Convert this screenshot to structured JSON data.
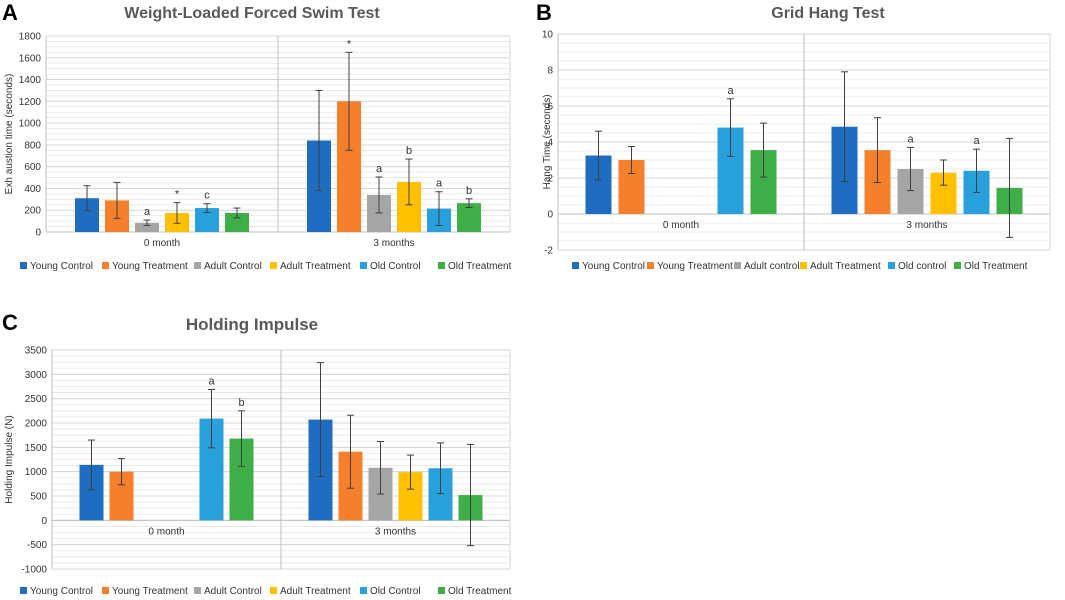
{
  "panels": [
    {
      "letter": "A"
    },
    {
      "letter": "B"
    },
    {
      "letter": "C"
    }
  ],
  "colors": {
    "young_control": "#1f6dc1",
    "young_treatment": "#f57f2a",
    "adult_control": "#a5a5a5",
    "adult_treatment": "#ffc000",
    "old_control": "#28a0dc",
    "old_treatment": "#3fae49"
  },
  "chart_data": [
    {
      "type": "bar",
      "title": "Weight-Loaded Forced Swim Test",
      "xlabel": "",
      "ylabel": "Exh austion time (seconds)",
      "ylim": [
        0,
        1800
      ],
      "yticks": [
        0,
        200,
        400,
        600,
        800,
        1000,
        1200,
        1400,
        1600,
        1800
      ],
      "categories": [
        "0 month",
        "3 months"
      ],
      "series": [
        {
          "name": "Young Control",
          "values": [
            310,
            840
          ],
          "errors": [
            115,
            460
          ],
          "labels": [
            "",
            ""
          ]
        },
        {
          "name": "Young Treatment",
          "values": [
            290,
            1200
          ],
          "errors": [
            165,
            450
          ],
          "labels": [
            "",
            "*"
          ]
        },
        {
          "name": "Adult Control",
          "values": [
            85,
            340
          ],
          "errors": [
            25,
            165
          ],
          "labels": [
            "a",
            "a"
          ]
        },
        {
          "name": "Adult Treatment",
          "values": [
            175,
            460
          ],
          "errors": [
            95,
            210
          ],
          "labels": [
            "*",
            "b"
          ]
        },
        {
          "name": "Old Control",
          "values": [
            220,
            215
          ],
          "errors": [
            40,
            155
          ],
          "labels": [
            "c",
            "a"
          ]
        },
        {
          "name": "Old Treatment",
          "values": [
            175,
            265
          ],
          "errors": [
            45,
            40
          ],
          "labels": [
            "",
            "b"
          ]
        }
      ]
    },
    {
      "type": "bar",
      "title": "Grid Hang Test",
      "xlabel": "",
      "ylabel": "Hang Time (seconds)",
      "ylim": [
        -2,
        10
      ],
      "yticks": [
        -2,
        0,
        2,
        4,
        6,
        8,
        10
      ],
      "categories": [
        "0 month",
        "3 months"
      ],
      "series": [
        {
          "name": "Young Control",
          "values": [
            3.25,
            4.85
          ],
          "errors": [
            1.35,
            3.05
          ],
          "labels": [
            "",
            ""
          ],
          "present": [
            true,
            true
          ]
        },
        {
          "name": "Young Treatment",
          "values": [
            3.0,
            3.55
          ],
          "errors": [
            0.75,
            1.8
          ],
          "labels": [
            "",
            ""
          ],
          "present": [
            true,
            true
          ]
        },
        {
          "name": "Adult control",
          "values": [
            0,
            2.5
          ],
          "errors": [
            0,
            1.2
          ],
          "labels": [
            "",
            "a"
          ],
          "present": [
            false,
            true
          ]
        },
        {
          "name": "Adult Treatment",
          "values": [
            0,
            2.3
          ],
          "errors": [
            0,
            0.7
          ],
          "labels": [
            "",
            ""
          ],
          "present": [
            false,
            true
          ]
        },
        {
          "name": "Old control",
          "values": [
            4.8,
            2.4
          ],
          "errors": [
            1.6,
            1.2
          ],
          "labels": [
            "a",
            "a"
          ],
          "present": [
            true,
            true
          ]
        },
        {
          "name": "Old Treatment",
          "values": [
            3.55,
            1.45
          ],
          "errors": [
            1.5,
            2.75
          ],
          "labels": [
            "",
            ""
          ],
          "present": [
            true,
            true
          ]
        }
      ]
    },
    {
      "type": "bar",
      "title": "Holding Impulse",
      "xlabel": "",
      "ylabel": "Holding Impulse (N)",
      "ylim": [
        -1000,
        3500
      ],
      "yticks": [
        -1000,
        -500,
        0,
        500,
        1000,
        1500,
        2000,
        2500,
        3000,
        3500
      ],
      "categories": [
        "0 month",
        "3 months"
      ],
      "series": [
        {
          "name": "Young Control",
          "values": [
            1140,
            2070
          ],
          "errors": [
            510,
            1170
          ],
          "labels": [
            "",
            ""
          ],
          "present": [
            true,
            true
          ]
        },
        {
          "name": "Young Treatment",
          "values": [
            1000,
            1410
          ],
          "errors": [
            270,
            750
          ],
          "labels": [
            "",
            ""
          ],
          "present": [
            true,
            true
          ]
        },
        {
          "name": "Adult Control",
          "values": [
            0,
            1080
          ],
          "errors": [
            0,
            540
          ],
          "labels": [
            "",
            ""
          ],
          "present": [
            false,
            true
          ]
        },
        {
          "name": "Adult Treatment",
          "values": [
            0,
            990
          ],
          "errors": [
            0,
            350
          ],
          "labels": [
            "",
            ""
          ],
          "present": [
            false,
            true
          ]
        },
        {
          "name": "Old Control",
          "values": [
            2090,
            1070
          ],
          "errors": [
            600,
            520
          ],
          "labels": [
            "a",
            ""
          ],
          "present": [
            true,
            true
          ]
        },
        {
          "name": "Old Treatment",
          "values": [
            1680,
            520
          ],
          "errors": [
            570,
            1040
          ],
          "labels": [
            "b",
            ""
          ],
          "present": [
            true,
            true
          ]
        }
      ]
    }
  ]
}
